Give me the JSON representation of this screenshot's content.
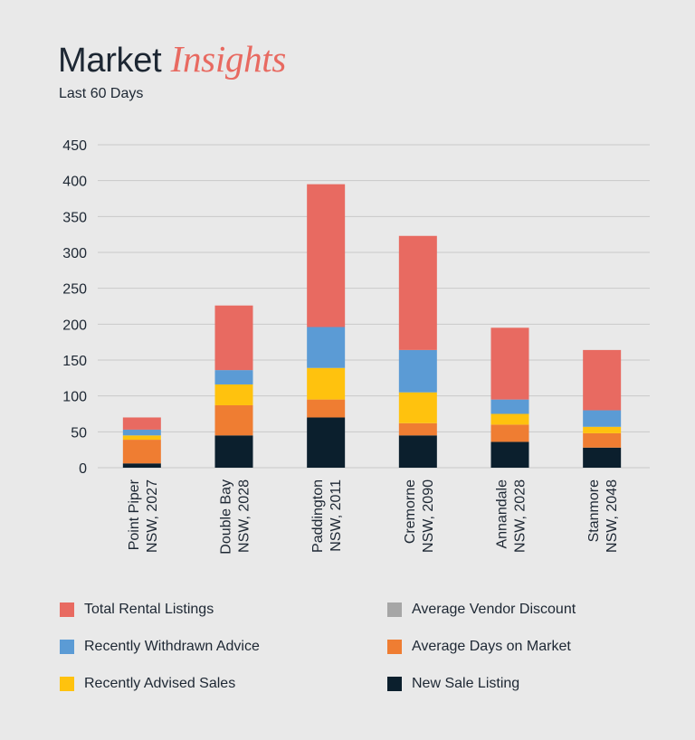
{
  "header": {
    "title_main": "Market",
    "title_accent": "Insights",
    "subtitle": "Last 60 Days"
  },
  "colors": {
    "total_rental": "#e86a61",
    "withdrawn": "#5b9bd5",
    "advised_sales": "#ffc20e",
    "vendor_discount": "#a6a6a6",
    "days_on_market": "#ef7d32",
    "new_sale": "#0b1f2d",
    "grid": "#c9c9c9",
    "text": "#1d2733"
  },
  "chart_data": {
    "type": "bar",
    "stacked": true,
    "ylim": [
      0,
      450
    ],
    "yticks": [
      0,
      50,
      100,
      150,
      200,
      250,
      300,
      350,
      400,
      450
    ],
    "grid": true,
    "legend_position": "bottom",
    "categories": [
      [
        "Point Piper",
        "NSW, 2027"
      ],
      [
        "Double Bay",
        "NSW, 2028"
      ],
      [
        "Paddington",
        "NSW, 2011"
      ],
      [
        "Cremorne",
        "NSW, 2090"
      ],
      [
        "Annandale",
        "NSW, 2028"
      ],
      [
        "Stanmore",
        "NSW, 2048"
      ]
    ],
    "series": [
      {
        "name": "New Sale Listing",
        "color_key": "new_sale",
        "values": [
          6,
          45,
          70,
          45,
          36,
          28
        ]
      },
      {
        "name": "Average Days on Market",
        "color_key": "days_on_market",
        "values": [
          33,
          42,
          25,
          17,
          24,
          20
        ]
      },
      {
        "name": "Recently Advised Sales",
        "color_key": "advised_sales",
        "values": [
          6,
          29,
          44,
          43,
          15,
          9
        ]
      },
      {
        "name": "Recently Withdrawn Advice",
        "color_key": "withdrawn",
        "values": [
          8,
          20,
          57,
          59,
          20,
          23
        ]
      },
      {
        "name": "Total Rental Listings",
        "color_key": "total_rental",
        "values": [
          17,
          90,
          199,
          159,
          100,
          84
        ]
      }
    ]
  },
  "legend": [
    {
      "label": "Total Rental Listings",
      "color_key": "total_rental"
    },
    {
      "label": "Average Vendor Discount",
      "color_key": "vendor_discount"
    },
    {
      "label": "Recently Withdrawn Advice",
      "color_key": "withdrawn"
    },
    {
      "label": "Average Days on Market",
      "color_key": "days_on_market"
    },
    {
      "label": "Recently Advised Sales",
      "color_key": "advised_sales"
    },
    {
      "label": "New Sale Listing",
      "color_key": "new_sale"
    }
  ]
}
